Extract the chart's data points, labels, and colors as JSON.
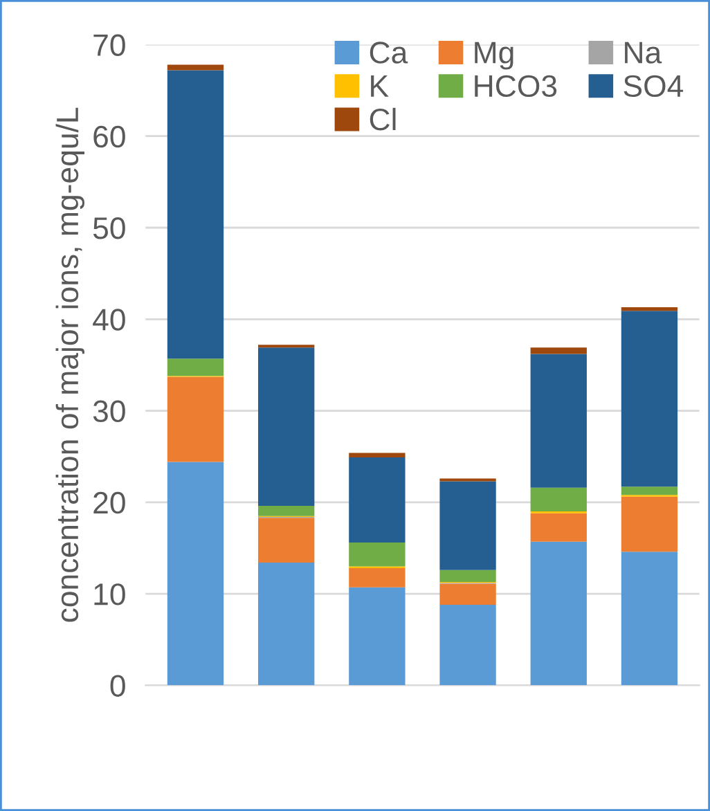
{
  "chart_data": {
    "type": "bar",
    "stacked": true,
    "ylabel": "concentration of major ions, mg-equ/L",
    "categories": [
      null,
      null,
      null,
      null,
      null,
      null
    ],
    "series": [
      {
        "name": "Ca",
        "color": "#5b9bd5",
        "values": [
          24.4,
          13.4,
          10.7,
          8.8,
          15.7,
          14.6
        ]
      },
      {
        "name": "Mg",
        "color": "#ed7d31",
        "values": [
          9.3,
          4.9,
          2.1,
          2.3,
          3.1,
          6.0
        ]
      },
      {
        "name": "Na",
        "color": "#a5a5a5",
        "values": [
          null,
          0.1,
          null,
          0.1,
          null,
          null
        ]
      },
      {
        "name": "K",
        "color": "#ffc000",
        "values": [
          0.1,
          0.1,
          0.2,
          0.1,
          0.2,
          0.2
        ]
      },
      {
        "name": "HCO3",
        "color": "#70ad47",
        "values": [
          1.9,
          1.1,
          2.6,
          1.3,
          2.6,
          0.9
        ]
      },
      {
        "name": "SO4",
        "color": "#255e91",
        "values": [
          31.5,
          17.3,
          9.3,
          9.7,
          14.6,
          19.2
        ]
      },
      {
        "name": "Cl",
        "color": "#9e480e",
        "values": [
          0.6,
          0.3,
          0.5,
          0.3,
          0.7,
          0.4
        ]
      }
    ],
    "ylim": [
      0,
      70
    ],
    "yticks": [
      0,
      10,
      20,
      30,
      40,
      50,
      60,
      70
    ],
    "grid": "y",
    "legend": "top right"
  }
}
